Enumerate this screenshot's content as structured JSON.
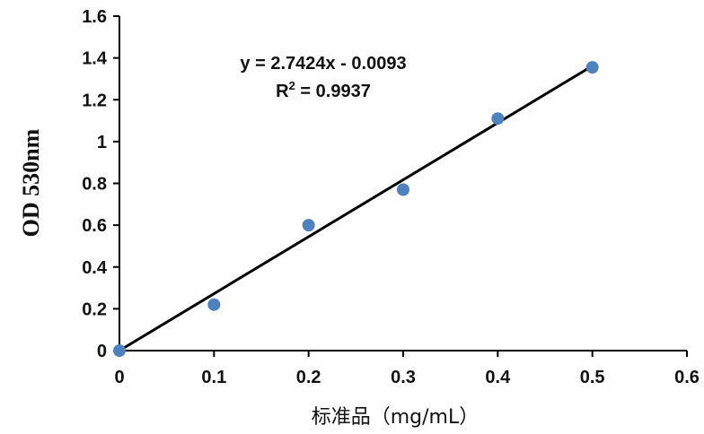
{
  "chart_data": {
    "type": "scatter",
    "title": "",
    "xlabel": "标准品（mg/mL）",
    "ylabel": "OD 530nm",
    "xlim": [
      0,
      0.6
    ],
    "ylim": [
      0,
      1.6
    ],
    "x_ticks": [
      "0",
      "0.1",
      "0.2",
      "0.3",
      "0.4",
      "0.5",
      "0.6"
    ],
    "y_ticks": [
      "0",
      "0.2",
      "0.4",
      "0.6",
      "0.8",
      "1",
      "1.2",
      "1.4",
      "1.6"
    ],
    "grid": false,
    "legend": "none",
    "series": [
      {
        "x": [
          0,
          0.1,
          0.2,
          0.3,
          0.4,
          0.5
        ],
        "y": [
          0.0,
          0.22,
          0.6,
          0.77,
          1.11,
          1.355
        ],
        "marker_color": "#4F81BD"
      }
    ],
    "trendline": {
      "type": "linear",
      "slope": 2.7424,
      "intercept": -0.0093,
      "x_range": [
        0,
        0.5
      ],
      "color": "#000000",
      "equation_text": "y = 2.7424x - 0.0093",
      "r2_prefix": "R",
      "r2_exponent": "2",
      "r2_value_text": " = 0.9937"
    }
  }
}
